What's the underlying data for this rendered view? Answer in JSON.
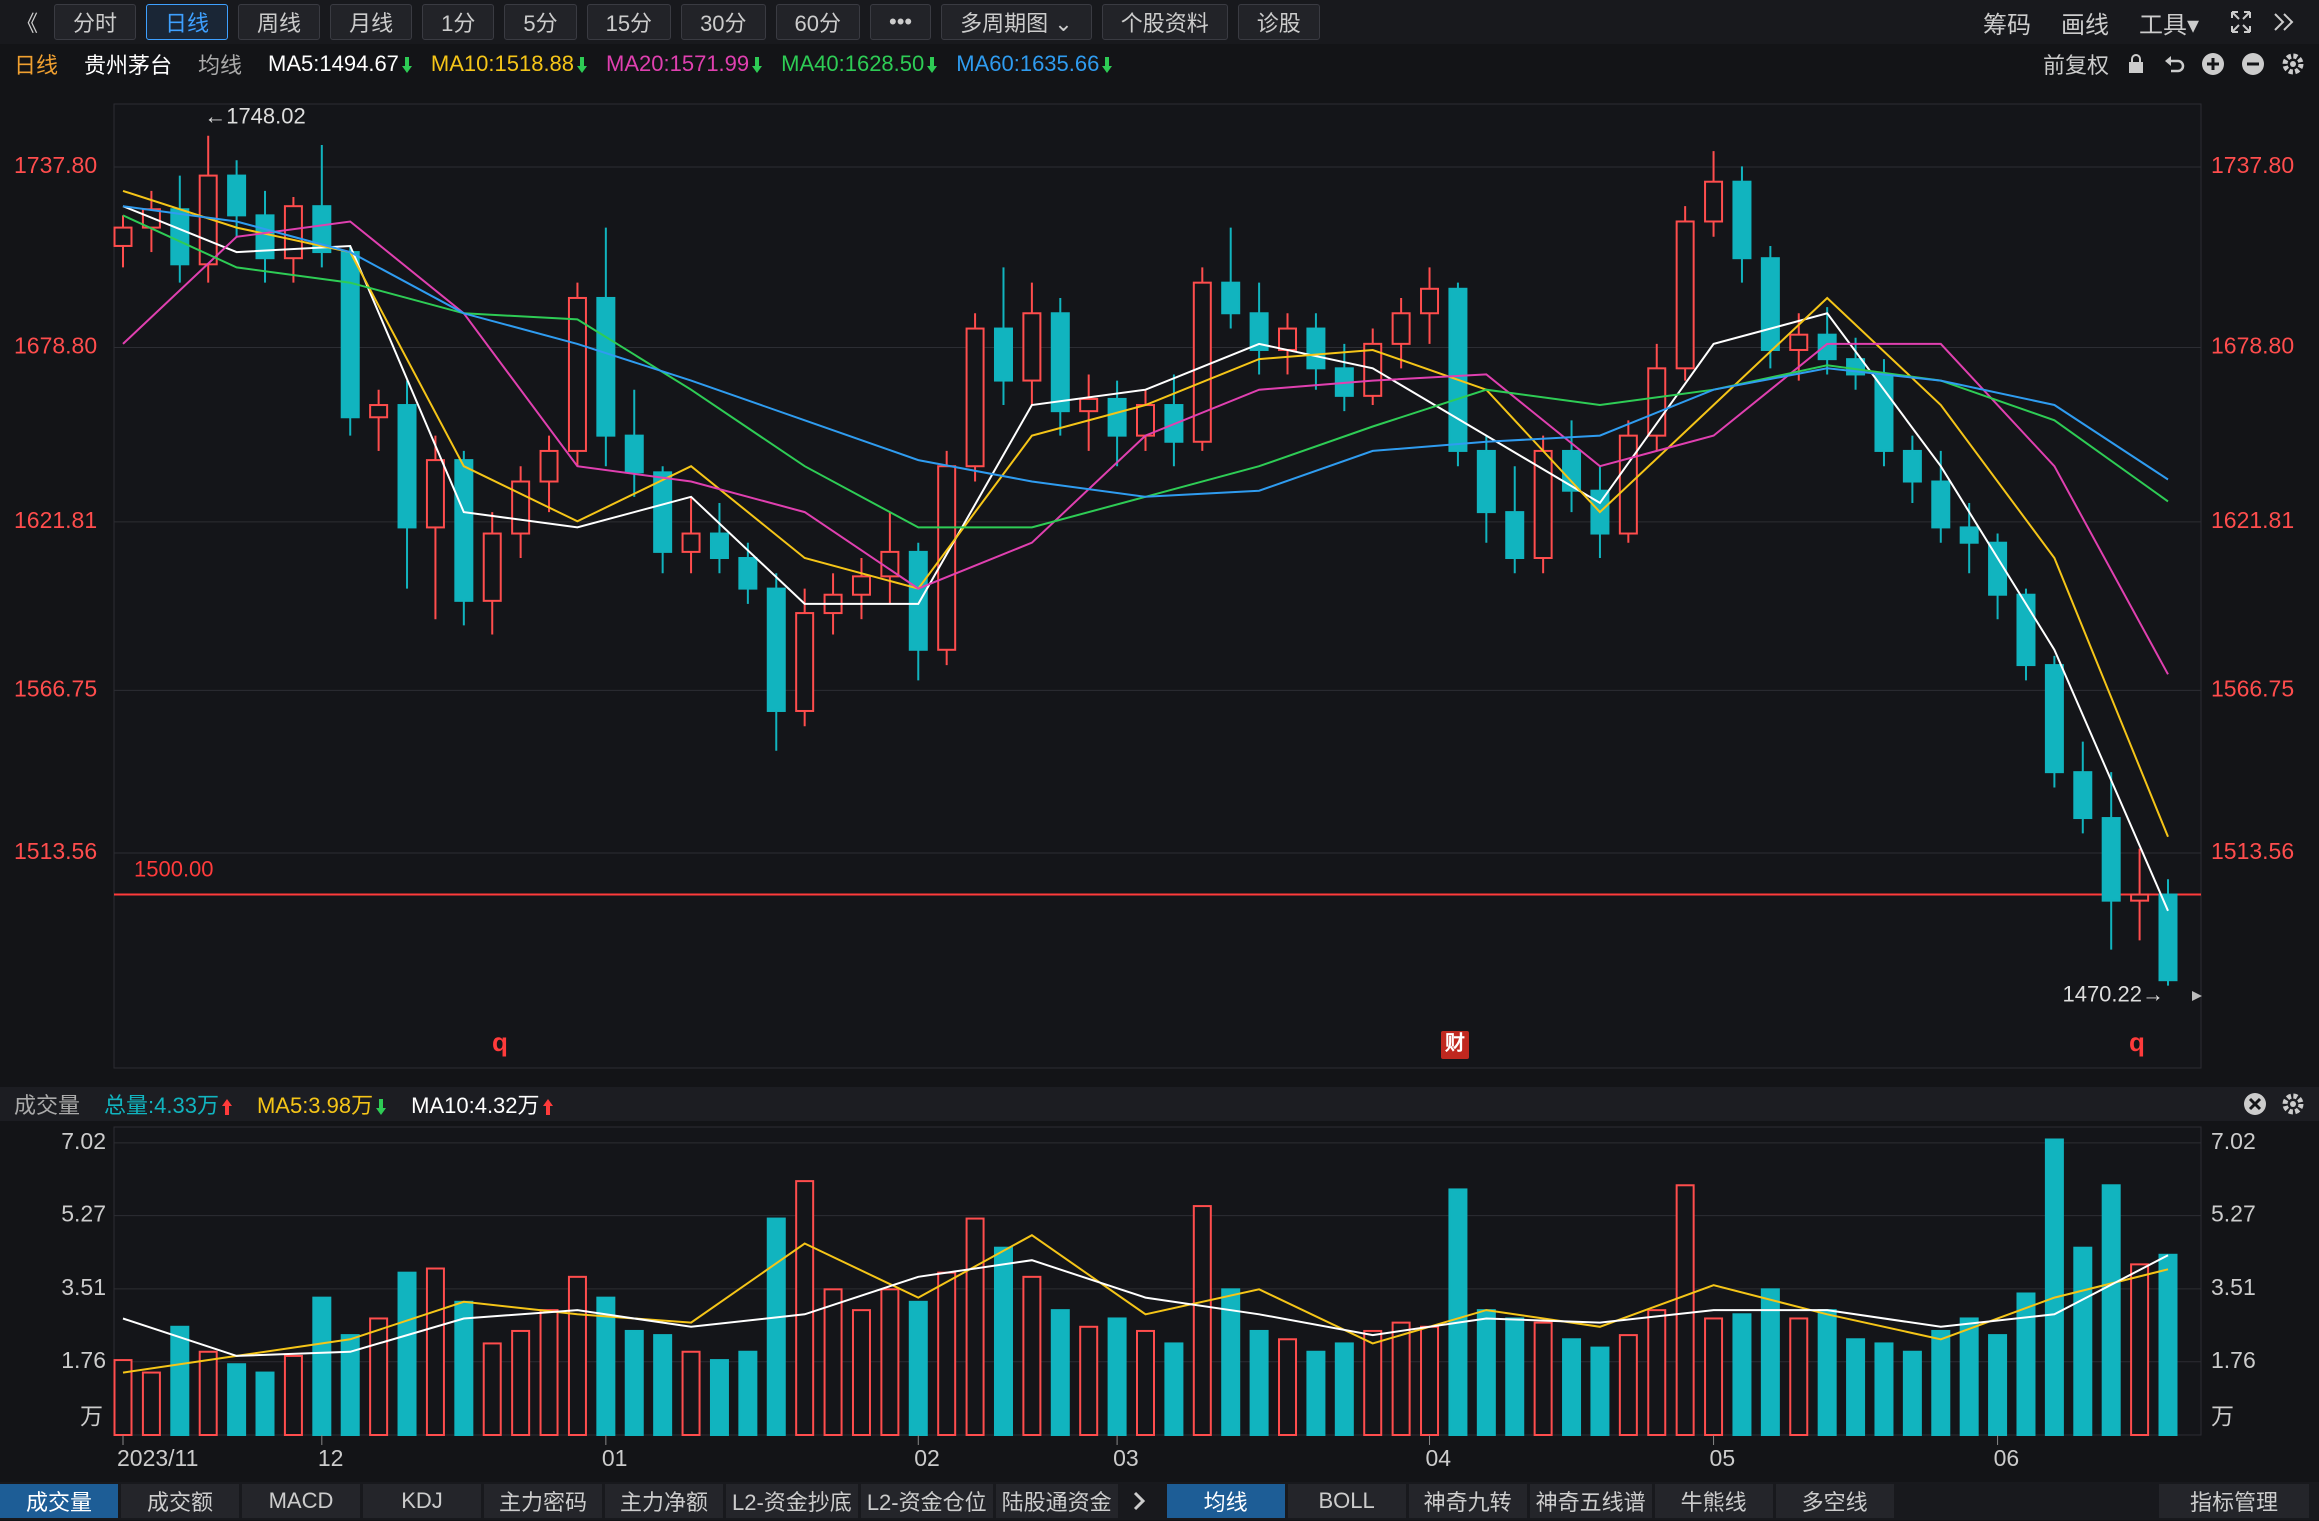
{
  "toolbar": {
    "left": [
      "《",
      "分时",
      "日线",
      "周线",
      "月线",
      "1分",
      "5分",
      "15分",
      "30分",
      "60分",
      "•••",
      "多周期图 ⌄",
      "个股资料",
      "诊股"
    ],
    "active": 2,
    "right": [
      "筹码",
      "画线",
      "工具▾"
    ]
  },
  "legend_row": {
    "period": "日线",
    "stock": "贵州茅台",
    "ma_label": "均线",
    "adjust": "前复权"
  },
  "chart_data": [
    {
      "type": "candlestick",
      "ylim": [
        1443.3,
        1758.4
      ],
      "yticks": [
        {
          "value": 1737.8,
          "label": "1737.80"
        },
        {
          "value": 1678.8,
          "label": "1678.80"
        },
        1621.81,
        1566.75,
        1513.56
      ],
      "grid": true,
      "up_color": "#ff4d4d",
      "down_color": "#11b4bf",
      "ohlc": {
        "open": [
          1712,
          1718,
          1724,
          1706,
          1735,
          1722,
          1708,
          1725,
          1710,
          1656,
          1660,
          1620,
          1642,
          1596,
          1618,
          1635,
          1645,
          1695,
          1650,
          1638,
          1612,
          1618,
          1610,
          1600,
          1560,
          1592,
          1598,
          1604,
          1612,
          1580,
          1640,
          1685,
          1668,
          1690,
          1658,
          1662,
          1650,
          1660,
          1648,
          1700,
          1690,
          1678,
          1685,
          1672,
          1663,
          1680,
          1690,
          1698,
          1645,
          1625,
          1610,
          1645,
          1632,
          1618,
          1650,
          1672,
          1720,
          1733,
          1708,
          1678,
          1683,
          1675,
          1670,
          1645,
          1635,
          1620,
          1615,
          1598,
          1575,
          1540,
          1525,
          1498,
          1500
        ],
        "high": [
          1722,
          1730,
          1735,
          1748.02,
          1740,
          1730,
          1728,
          1745,
          1712,
          1665,
          1668,
          1650,
          1645,
          1625,
          1640,
          1650,
          1700,
          1718,
          1665,
          1640,
          1630,
          1628,
          1615,
          1605,
          1600,
          1605,
          1610,
          1625,
          1615,
          1645,
          1690,
          1705,
          1700,
          1695,
          1670,
          1668,
          1665,
          1670,
          1705,
          1718,
          1700,
          1690,
          1690,
          1680,
          1685,
          1695,
          1705,
          1700,
          1650,
          1640,
          1650,
          1655,
          1640,
          1655,
          1680,
          1725,
          1743,
          1738,
          1712,
          1690,
          1692,
          1682,
          1675,
          1650,
          1645,
          1628,
          1618,
          1600,
          1578,
          1550,
          1540,
          1515,
          1505
        ],
        "low": [
          1705,
          1710,
          1700,
          1700,
          1715,
          1700,
          1700,
          1705,
          1650,
          1645,
          1600,
          1590,
          1588,
          1585,
          1610,
          1625,
          1640,
          1640,
          1630,
          1605,
          1605,
          1605,
          1595,
          1547,
          1555,
          1585,
          1590,
          1595,
          1570,
          1575,
          1635,
          1660,
          1660,
          1650,
          1645,
          1640,
          1645,
          1640,
          1645,
          1685,
          1670,
          1670,
          1665,
          1658,
          1660,
          1672,
          1680,
          1640,
          1615,
          1605,
          1605,
          1625,
          1610,
          1615,
          1645,
          1668,
          1715,
          1700,
          1672,
          1668,
          1670,
          1665,
          1640,
          1628,
          1615,
          1605,
          1590,
          1570,
          1535,
          1520,
          1482,
          1485,
          1470.22
        ],
        "close": [
          1718,
          1724,
          1706,
          1735,
          1722,
          1708,
          1725,
          1710,
          1656,
          1660,
          1620,
          1642,
          1596,
          1618,
          1635,
          1645,
          1695,
          1650,
          1638,
          1612,
          1618,
          1610,
          1600,
          1560,
          1592,
          1598,
          1604,
          1612,
          1580,
          1640,
          1685,
          1668,
          1690,
          1658,
          1662,
          1650,
          1660,
          1648,
          1700,
          1690,
          1678,
          1685,
          1672,
          1663,
          1680,
          1690,
          1698,
          1645,
          1625,
          1610,
          1645,
          1632,
          1618,
          1650,
          1672,
          1720,
          1733,
          1708,
          1678,
          1683,
          1675,
          1670,
          1645,
          1635,
          1620,
          1615,
          1598,
          1575,
          1540,
          1525,
          1498,
          1500,
          1472
        ]
      },
      "series": [
        {
          "name": "MA5",
          "label": "MA5:1494.67",
          "trend": "down",
          "color": "#ffffff",
          "x": [
            0,
            4,
            8,
            12,
            16,
            20,
            24,
            28,
            32,
            36,
            40,
            44,
            48,
            52,
            56,
            60,
            64,
            68,
            72
          ],
          "values": [
            1725,
            1710,
            1712,
            1625,
            1620,
            1630,
            1595,
            1595,
            1660,
            1665,
            1680,
            1672,
            1650,
            1628,
            1680,
            1690,
            1640,
            1580,
            1494.67
          ]
        },
        {
          "name": "MA10",
          "label": "MA10:1518.88",
          "trend": "down",
          "color": "#f5c518",
          "x": [
            0,
            4,
            8,
            12,
            16,
            20,
            24,
            28,
            32,
            36,
            40,
            44,
            48,
            52,
            56,
            60,
            64,
            68,
            72
          ],
          "values": [
            1730,
            1718,
            1710,
            1640,
            1622,
            1640,
            1610,
            1600,
            1650,
            1660,
            1675,
            1678,
            1665,
            1625,
            1660,
            1695,
            1660,
            1610,
            1518.88
          ]
        },
        {
          "name": "MA20",
          "label": "MA20:1571.99",
          "trend": "down",
          "color": "#e040b0",
          "x": [
            0,
            4,
            8,
            12,
            16,
            20,
            24,
            28,
            32,
            36,
            40,
            44,
            48,
            52,
            56,
            60,
            64,
            68,
            72
          ],
          "values": [
            1680,
            1715,
            1720,
            1690,
            1640,
            1635,
            1625,
            1600,
            1615,
            1650,
            1665,
            1668,
            1670,
            1640,
            1650,
            1680,
            1680,
            1640,
            1571.99
          ]
        },
        {
          "name": "MA40",
          "label": "MA40:1628.50",
          "trend": "down",
          "color": "#2ecc55",
          "x": [
            0,
            4,
            8,
            12,
            16,
            20,
            24,
            28,
            32,
            36,
            40,
            44,
            48,
            52,
            56,
            60,
            64,
            68,
            72
          ],
          "values": [
            1722,
            1705,
            1700,
            1690,
            1688,
            1665,
            1640,
            1620,
            1620,
            1630,
            1640,
            1653,
            1665,
            1660,
            1665,
            1673,
            1668,
            1655,
            1628.5
          ]
        },
        {
          "name": "MA60",
          "label": "MA60:1635.66",
          "trend": "down",
          "color": "#2f9cf0",
          "x": [
            0,
            4,
            8,
            12,
            16,
            20,
            24,
            28,
            32,
            36,
            40,
            44,
            48,
            52,
            56,
            60,
            64,
            68,
            72
          ],
          "values": [
            1725,
            1720,
            1710,
            1690,
            1680,
            1668,
            1655,
            1642,
            1635,
            1630,
            1632,
            1645,
            1648,
            1650,
            1665,
            1672,
            1668,
            1660,
            1635.66
          ]
        }
      ],
      "hline": {
        "value": 1500,
        "label": "1500.00",
        "color": "#ff3b3b"
      },
      "annotations": [
        {
          "value": 1748.02,
          "label": "←1748.02",
          "at": "high"
        },
        {
          "value": 1470.22,
          "label": "1470.22→",
          "at": "low"
        }
      ],
      "markers": [
        "q",
        "财",
        "q"
      ]
    },
    {
      "type": "volume",
      "title": "成交量",
      "unit_label": "万",
      "ylim": [
        0,
        7.4
      ],
      "yticks": [
        7.02,
        5.27,
        3.51,
        1.76
      ],
      "values": [
        1.8,
        1.5,
        2.6,
        2.0,
        1.7,
        1.5,
        1.9,
        3.3,
        2.4,
        2.8,
        3.9,
        4.0,
        3.2,
        2.2,
        2.5,
        3.0,
        3.8,
        3.3,
        2.5,
        2.4,
        2.0,
        1.8,
        2.0,
        5.2,
        6.1,
        3.5,
        3.0,
        3.5,
        3.2,
        3.9,
        5.2,
        4.5,
        3.8,
        3.0,
        2.6,
        2.8,
        2.5,
        2.2,
        5.5,
        3.5,
        2.5,
        2.3,
        2.0,
        2.2,
        2.5,
        2.7,
        2.6,
        5.9,
        3.0,
        2.8,
        2.7,
        2.3,
        2.1,
        2.4,
        3.0,
        6.0,
        2.8,
        2.9,
        3.5,
        2.8,
        3.0,
        2.3,
        2.2,
        2.0,
        2.5,
        2.8,
        2.4,
        3.4,
        7.1,
        4.5,
        6.0,
        4.1,
        4.33
      ],
      "total_label": "总量:4.33万",
      "total_trend": "up",
      "total_color": "#11b4bf",
      "series": [
        {
          "name": "MA5",
          "label": "MA5:3.98万",
          "trend": "down",
          "color": "#f5c518",
          "x": [
            0,
            4,
            8,
            12,
            16,
            20,
            24,
            28,
            32,
            36,
            40,
            44,
            48,
            52,
            56,
            60,
            64,
            68,
            72
          ],
          "values": [
            1.5,
            1.9,
            2.3,
            3.2,
            2.9,
            2.7,
            4.6,
            3.3,
            4.8,
            2.9,
            3.5,
            2.2,
            3.0,
            2.6,
            3.6,
            2.9,
            2.3,
            3.3,
            3.98
          ]
        },
        {
          "name": "MA10",
          "label": "MA10:4.32万",
          "trend": "up",
          "color": "#ffffff",
          "x": [
            0,
            4,
            8,
            12,
            16,
            20,
            24,
            28,
            32,
            36,
            40,
            44,
            48,
            52,
            56,
            60,
            64,
            68,
            72
          ],
          "values": [
            2.8,
            1.9,
            2.0,
            2.8,
            3.0,
            2.6,
            2.9,
            3.8,
            4.2,
            3.3,
            2.9,
            2.4,
            2.8,
            2.7,
            3.0,
            3.0,
            2.6,
            2.9,
            4.32
          ]
        }
      ],
      "xticks": [
        {
          "value": 0,
          "label": "2023/11"
        },
        {
          "value": 7,
          "label": "12"
        },
        {
          "value": 17,
          "label": "01"
        },
        {
          "value": 28,
          "label": "02"
        },
        {
          "value": 35,
          "label": "03"
        },
        {
          "value": 46,
          "label": "04"
        },
        {
          "value": 56,
          "label": "05"
        },
        {
          "value": 66,
          "label": "06"
        }
      ]
    }
  ],
  "bottom_tabs": {
    "left": [
      "成交量",
      "成交额",
      "MACD",
      "KDJ",
      "主力密码",
      "主力净额",
      "L2-资金抄底",
      "L2-资金仓位",
      "陆股通资金"
    ],
    "left_active": 0,
    "right": [
      "均线",
      "BOLL",
      "神奇九转",
      "神奇五线谱",
      "牛熊线",
      "多空线"
    ],
    "right_active": 0,
    "manage": "指标管理"
  }
}
